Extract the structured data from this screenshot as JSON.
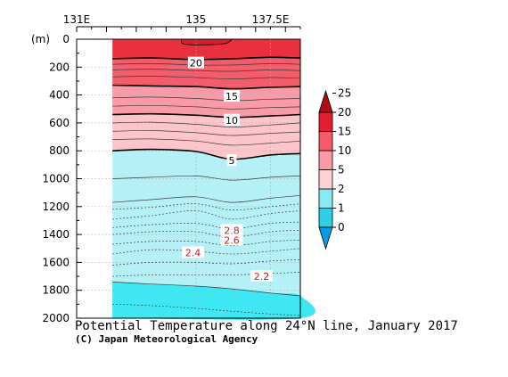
{
  "chart_data": {
    "type": "heatmap",
    "title": "Potential Temperature along 24°N line, January 2017",
    "credit": "(C) Japan Meteorological Agency",
    "depth_unit": "(m)",
    "x_ticks": [
      {
        "lon": 131,
        "label": "131E"
      },
      {
        "lon": 135,
        "label": "135"
      },
      {
        "lon": 137.5,
        "label": "137.5E"
      }
    ],
    "x_range": [
      131,
      138.5
    ],
    "data_lon_range": [
      132.2,
      138.5
    ],
    "y_range": [
      0,
      2000
    ],
    "y_ticks": [
      0,
      200,
      400,
      600,
      800,
      1000,
      1200,
      1400,
      1600,
      1800,
      2000
    ],
    "grid": true,
    "contour_levels": [
      2.2,
      2.4,
      2.6,
      2.8,
      5,
      10,
      15,
      20
    ],
    "contour_labels": [
      {
        "text": "20",
        "lon": 135,
        "depth": 170
      },
      {
        "text": "15",
        "lon": 136.2,
        "depth": 410
      },
      {
        "text": "10",
        "lon": 136.2,
        "depth": 580
      },
      {
        "text": "5",
        "lon": 136.2,
        "depth": 870
      },
      {
        "text": "2.8",
        "lon": 136.2,
        "depth": 1370
      },
      {
        "text": "2.6",
        "lon": 136.2,
        "depth": 1440
      },
      {
        "text": "2.4",
        "lon": 134.9,
        "depth": 1530
      },
      {
        "text": "2.2",
        "lon": 137.2,
        "depth": 1700
      }
    ],
    "isotherms": [
      {
        "level": 20,
        "points": [
          [
            132.2,
            140
          ],
          [
            133.5,
            135
          ],
          [
            135,
            145
          ],
          [
            136.2,
            140
          ],
          [
            137.5,
            130
          ],
          [
            138.5,
            135
          ]
        ]
      },
      {
        "level": 15,
        "points": [
          [
            132.2,
            330
          ],
          [
            133.5,
            335
          ],
          [
            135,
            340
          ],
          [
            136.2,
            355
          ],
          [
            137.5,
            345
          ],
          [
            138.5,
            340
          ]
        ]
      },
      {
        "level": 10,
        "points": [
          [
            132.2,
            540
          ],
          [
            133.5,
            535
          ],
          [
            135,
            545
          ],
          [
            136.2,
            560
          ],
          [
            137.5,
            550
          ],
          [
            138.5,
            540
          ]
        ]
      },
      {
        "level": 5,
        "points": [
          [
            132.2,
            800
          ],
          [
            133.5,
            790
          ],
          [
            135,
            805
          ],
          [
            136.2,
            860
          ],
          [
            137.5,
            830
          ],
          [
            138.5,
            820
          ]
        ]
      },
      {
        "level": 2.8,
        "points": [
          [
            132.2,
            1290
          ],
          [
            133.5,
            1265
          ],
          [
            135,
            1230
          ],
          [
            136.2,
            1290
          ],
          [
            137.5,
            1250
          ],
          [
            138.5,
            1230
          ]
        ]
      },
      {
        "level": 2.6,
        "points": [
          [
            132.2,
            1400
          ],
          [
            133.5,
            1380
          ],
          [
            135,
            1380
          ],
          [
            136.2,
            1420
          ],
          [
            137.5,
            1380
          ],
          [
            138.5,
            1370
          ]
        ]
      },
      {
        "level": 2.4,
        "points": [
          [
            132.2,
            1540
          ],
          [
            133.5,
            1510
          ],
          [
            135,
            1520
          ],
          [
            136.2,
            1540
          ],
          [
            137.5,
            1520
          ],
          [
            138.5,
            1500
          ]
        ]
      },
      {
        "level": 2.2,
        "points": [
          [
            132.2,
            1700
          ],
          [
            133.5,
            1690
          ],
          [
            135,
            1690
          ],
          [
            136.2,
            1690
          ],
          [
            137.5,
            1680
          ],
          [
            138.5,
            1670
          ]
        ]
      }
    ],
    "extra_lines": [
      {
        "style": "solid",
        "points": [
          [
            132.2,
            180
          ],
          [
            133.5,
            175
          ],
          [
            135,
            185
          ],
          [
            136.2,
            185
          ],
          [
            137.5,
            175
          ],
          [
            138.5,
            180
          ]
        ]
      },
      {
        "style": "solid",
        "points": [
          [
            132.2,
            220
          ],
          [
            133.5,
            215
          ],
          [
            135,
            225
          ],
          [
            136.2,
            230
          ],
          [
            137.5,
            220
          ],
          [
            138.5,
            225
          ]
        ]
      },
      {
        "style": "solid",
        "points": [
          [
            132.2,
            270
          ],
          [
            133.5,
            265
          ],
          [
            135,
            275
          ],
          [
            136.2,
            285
          ],
          [
            137.5,
            275
          ],
          [
            138.5,
            280
          ]
        ]
      },
      {
        "style": "solid",
        "points": [
          [
            132.2,
            420
          ],
          [
            133.5,
            415
          ],
          [
            135,
            425
          ],
          [
            136.2,
            440
          ],
          [
            137.5,
            430
          ],
          [
            138.5,
            425
          ]
        ]
      },
      {
        "style": "solid",
        "points": [
          [
            132.2,
            480
          ],
          [
            133.5,
            475
          ],
          [
            135,
            485
          ],
          [
            136.2,
            500
          ],
          [
            137.5,
            490
          ],
          [
            138.5,
            485
          ]
        ]
      },
      {
        "style": "solid",
        "points": [
          [
            132.2,
            600
          ],
          [
            133.5,
            595
          ],
          [
            135,
            610
          ],
          [
            136.2,
            630
          ],
          [
            137.5,
            615
          ],
          [
            138.5,
            600
          ]
        ]
      },
      {
        "style": "solid",
        "points": [
          [
            132.2,
            660
          ],
          [
            133.5,
            655
          ],
          [
            135,
            670
          ],
          [
            136.2,
            690
          ],
          [
            137.5,
            675
          ],
          [
            138.5,
            665
          ]
        ]
      },
      {
        "style": "solid",
        "points": [
          [
            132.2,
            720
          ],
          [
            133.5,
            715
          ],
          [
            135,
            730
          ],
          [
            136.2,
            760
          ],
          [
            137.5,
            745
          ],
          [
            138.5,
            730
          ]
        ]
      },
      {
        "style": "solid",
        "points": [
          [
            132.2,
            1000
          ],
          [
            133.5,
            990
          ],
          [
            135,
            980
          ],
          [
            136.2,
            1010
          ],
          [
            137.5,
            990
          ],
          [
            138.5,
            980
          ]
        ]
      },
      {
        "style": "solid",
        "points": [
          [
            132.2,
            1170
          ],
          [
            133.5,
            1150
          ],
          [
            135,
            1130
          ],
          [
            136.2,
            1170
          ],
          [
            137.5,
            1140
          ],
          [
            138.5,
            1120
          ]
        ]
      },
      {
        "style": "dotted",
        "points": [
          [
            132.2,
            1220
          ],
          [
            133.5,
            1205
          ],
          [
            135,
            1180
          ],
          [
            136.2,
            1225
          ],
          [
            137.5,
            1200
          ],
          [
            138.5,
            1180
          ]
        ]
      },
      {
        "style": "dotted",
        "points": [
          [
            132.2,
            1350
          ],
          [
            133.5,
            1330
          ],
          [
            135,
            1320
          ],
          [
            136.2,
            1360
          ],
          [
            137.5,
            1320
          ],
          [
            138.5,
            1310
          ]
        ]
      },
      {
        "style": "dotted",
        "points": [
          [
            132.2,
            1470
          ],
          [
            133.5,
            1450
          ],
          [
            135,
            1450
          ],
          [
            136.2,
            1480
          ],
          [
            137.5,
            1450
          ],
          [
            138.5,
            1440
          ]
        ]
      },
      {
        "style": "dotted",
        "points": [
          [
            132.2,
            1620
          ],
          [
            133.5,
            1600
          ],
          [
            135,
            1600
          ],
          [
            136.2,
            1610
          ],
          [
            137.5,
            1590
          ],
          [
            138.5,
            1580
          ]
        ]
      },
      {
        "style": "solid",
        "points": [
          [
            132.2,
            1740
          ],
          [
            133.5,
            1755
          ],
          [
            135,
            1770
          ],
          [
            136.2,
            1790
          ],
          [
            137.5,
            1820
          ],
          [
            138.5,
            1840
          ]
        ]
      },
      {
        "style": "dotted",
        "points": [
          [
            132.2,
            1900
          ],
          [
            133.5,
            1910
          ],
          [
            135,
            1930
          ],
          [
            136.2,
            1950
          ],
          [
            137.5,
            1970
          ],
          [
            138.5,
            1980
          ]
        ]
      }
    ],
    "top_core": {
      "level": 25,
      "points": [
        [
          134.5,
          0
        ],
        [
          134.6,
          35
        ],
        [
          135.3,
          40
        ],
        [
          136.0,
          30
        ],
        [
          136.2,
          0
        ]
      ]
    },
    "bottom_core": {
      "level": 2,
      "points": [
        [
          132.2,
          1740
        ],
        [
          133.5,
          1755
        ],
        [
          135,
          1770
        ],
        [
          136.2,
          1790
        ],
        [
          137.5,
          1820
        ],
        [
          138.5,
          1840
        ],
        [
          138.5,
          2000
        ],
        [
          132.2,
          2000
        ]
      ]
    },
    "colorbar": {
      "levels": [
        0,
        1,
        2,
        5,
        10,
        15,
        20,
        25
      ],
      "colors": [
        "#0a9be8",
        "#2fcfe6",
        "#88ebf2",
        "#ffd1d6",
        "#fb9aa6",
        "#f35a6c",
        "#e61e32",
        "#b40a14"
      ],
      "ticks": [
        {
          "value": 25,
          "label": "25"
        },
        {
          "value": 20,
          "label": "20"
        },
        {
          "value": 15,
          "label": "15"
        },
        {
          "value": 10,
          "label": "10"
        },
        {
          "value": 5,
          "label": "5"
        },
        {
          "value": 2,
          "label": "2"
        },
        {
          "value": 1,
          "label": "1"
        },
        {
          "value": 0,
          "label": "0"
        }
      ]
    },
    "band_colors": {
      "above_20": "#e9303f",
      "15_20": "#f25c6b",
      "10_15": "#fa9aa6",
      "5_10": "#fcc5cc",
      "2_5": "#b5f0f7",
      "below_2": "#3fe7f2",
      "top_core": "#d81d2c"
    }
  }
}
